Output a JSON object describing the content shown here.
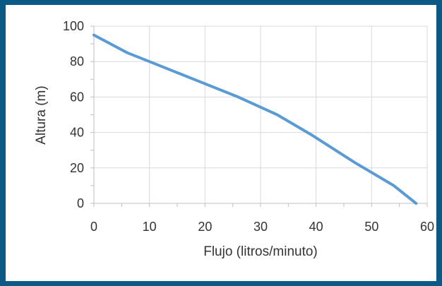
{
  "chart_data": {
    "type": "line",
    "title": "",
    "xlabel": "Flujo (litros/minuto)",
    "ylabel": "Altura (m)",
    "xlim": [
      0,
      60
    ],
    "ylim": [
      0,
      100
    ],
    "xticks": [
      0,
      10,
      20,
      30,
      40,
      50,
      60
    ],
    "yticks": [
      0,
      20,
      40,
      60,
      80,
      100
    ],
    "grid": true,
    "legend": "none",
    "series": [
      {
        "color": "#5b9bd5",
        "x": [
          0,
          6,
          10,
          18,
          26,
          33,
          39,
          47,
          54,
          58
        ],
        "y": [
          95,
          85,
          80,
          70,
          60,
          50,
          39,
          23,
          10,
          0
        ]
      }
    ]
  }
}
